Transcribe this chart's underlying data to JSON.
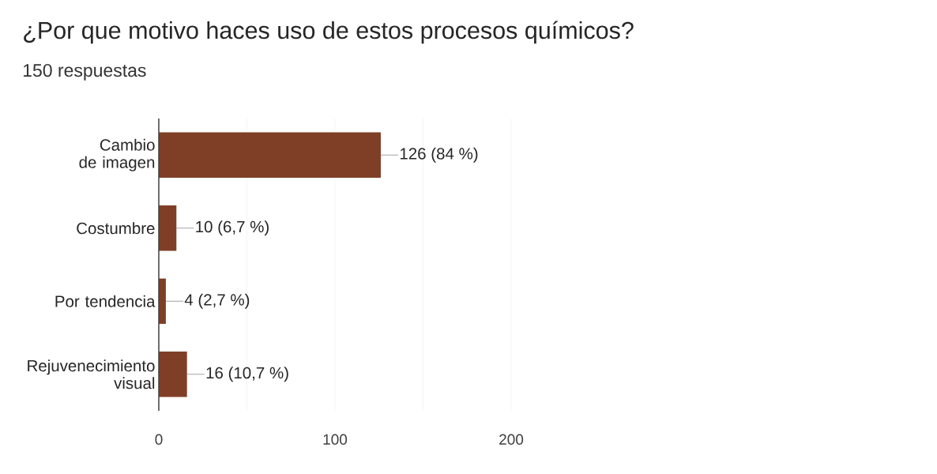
{
  "chart_data": {
    "type": "bar",
    "orientation": "horizontal",
    "title": "¿Por que motivo haces uso de estos procesos químicos?",
    "subtitle": "150 respuestas",
    "categories": [
      "Cambio de imagen",
      "Costumbre",
      "Por tendencia",
      "Rejuvenecimiento visual"
    ],
    "values": [
      126,
      10,
      4,
      16
    ],
    "value_labels": [
      "126 (84 %)",
      "10 (6,7 %)",
      "4 (2,7 %)",
      "16 (10,7 %)"
    ],
    "color": "#7f3f26",
    "xlim": [
      0,
      200
    ],
    "xticks": [
      0,
      {
        "value": 50,
        "label": null
      },
      100,
      {
        "value": 150,
        "label": null
      },
      200
    ],
    "grid": "x"
  }
}
